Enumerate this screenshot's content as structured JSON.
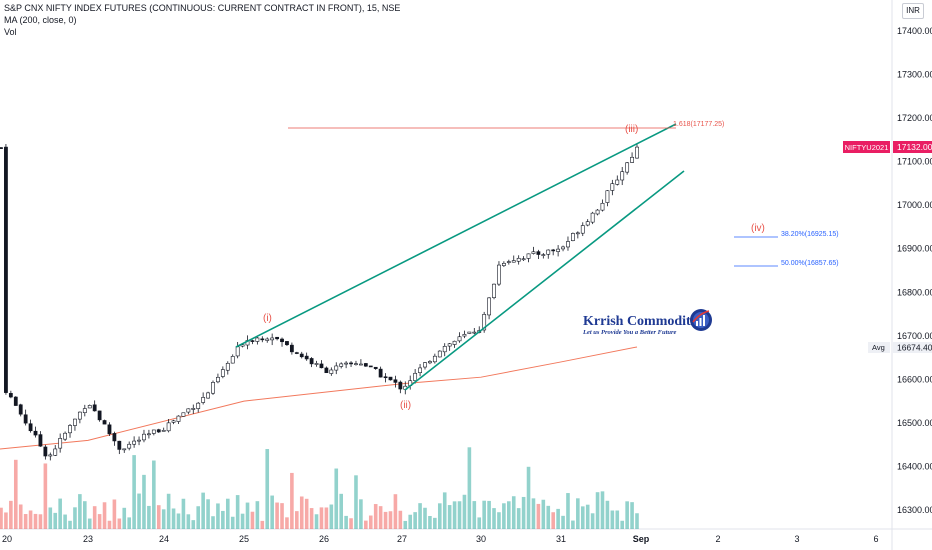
{
  "header": {
    "symbol_title": "S&P CNX NIFTY INDEX FUTURES (CONTINUOUS: CURRENT CONTRACT IN FRONT), 15, NSE",
    "ma_legend": "MA (200, close, 0)",
    "vol_legend": "Vol"
  },
  "currency_button": "INR",
  "price_axis": {
    "ticks": [
      "17400.00",
      "17300.00",
      "17200.00",
      "17100.00",
      "17000.00",
      "16900.00",
      "16800.00",
      "16700.00",
      "16600.00",
      "16500.00",
      "16400.00",
      "16300.00"
    ],
    "last_price_label": "NIFTYU2021",
    "last_price": "17132.00",
    "avg_label": "Avg",
    "avg_value": "16674.40"
  },
  "time_axis": {
    "ticks": [
      "20",
      "23",
      "24",
      "25",
      "26",
      "27",
      "30",
      "31",
      "Sep",
      "2",
      "3",
      "6"
    ]
  },
  "annotations": {
    "wave_i": "(i)",
    "wave_ii": "(ii)",
    "wave_iii": "(iii)",
    "wave_iv": "(iv)",
    "fib_1618": "1.618(17177.25)",
    "fib_382": "38.20%(16925.15)",
    "fib_50": "50.00%(16857.65)"
  },
  "watermark": {
    "brand": "Krrish Commodities",
    "tagline": "Let us Provide You a Better Future"
  },
  "colors": {
    "up": "#26a69a",
    "down": "#ef5350",
    "candle": "#131722",
    "channel": "#089981",
    "ma": "#f2785c",
    "fib_red": "#e8534a",
    "fib_blue": "#2962ff",
    "price_tag": "#e91e63",
    "brand": "#1f3a93"
  },
  "chart_data": {
    "type": "candlestick",
    "symbol": "NIFTYU2021",
    "timeframe": "15",
    "exchange": "NSE",
    "x_ticks": [
      "20",
      "23",
      "24",
      "25",
      "26",
      "27",
      "30",
      "31",
      "Sep",
      "2",
      "3",
      "6"
    ],
    "y_range": [
      16260,
      17470
    ],
    "close_path": [
      {
        "day": "20",
        "close": 16590
      },
      {
        "day": "20",
        "close": 16420
      },
      {
        "day": "23",
        "close": 16550
      },
      {
        "day": "23",
        "close": 16440
      },
      {
        "day": "24",
        "close": 16490
      },
      {
        "day": "24",
        "close": 16560
      },
      {
        "day": "25",
        "close": 16690
      },
      {
        "day": "25",
        "close": 16700
      },
      {
        "day": "26",
        "close": 16620
      },
      {
        "day": "26",
        "close": 16640
      },
      {
        "day": "27",
        "close": 16580
      },
      {
        "day": "27",
        "close": 16670
      },
      {
        "day": "30",
        "close": 16720
      },
      {
        "day": "30",
        "close": 16870
      },
      {
        "day": "31",
        "close": 16900
      },
      {
        "day": "31",
        "close": 17000
      },
      {
        "day": "Sep",
        "close": 17132
      }
    ],
    "ma200": [
      {
        "day": "23",
        "value": 16460
      },
      {
        "day": "25",
        "value": 16550
      },
      {
        "day": "27",
        "value": 16590
      },
      {
        "day": "30",
        "value": 16605
      },
      {
        "day": "31",
        "value": 16640
      },
      {
        "day": "Sep",
        "value": 16674.4
      }
    ],
    "last_price": 17132.0,
    "avg": 16674.4,
    "fib_levels": [
      {
        "label": "1.618",
        "value": 17177.25
      },
      {
        "label": "38.20%",
        "value": 16925.15
      },
      {
        "label": "50.00%",
        "value": 16857.65
      }
    ],
    "waves": [
      "(i)",
      "(ii)",
      "(iii)",
      "(iv)"
    ]
  }
}
